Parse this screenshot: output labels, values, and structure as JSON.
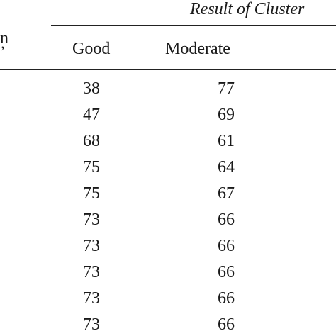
{
  "table": {
    "title": "Result of Cluster",
    "row_header_fragment": "n",
    "row_header_fragment2": "’",
    "columns": [
      "Good",
      "Moderate"
    ],
    "rows": [
      {
        "good": "38",
        "moderate": "77"
      },
      {
        "good": "47",
        "moderate": "69"
      },
      {
        "good": "68",
        "moderate": "61"
      },
      {
        "good": "75",
        "moderate": "64"
      },
      {
        "good": "75",
        "moderate": "67"
      },
      {
        "good": "73",
        "moderate": "66"
      },
      {
        "good": "73",
        "moderate": "66"
      },
      {
        "good": "73",
        "moderate": "66"
      },
      {
        "good": "73",
        "moderate": "66"
      },
      {
        "good": "73",
        "moderate": "66"
      }
    ]
  }
}
